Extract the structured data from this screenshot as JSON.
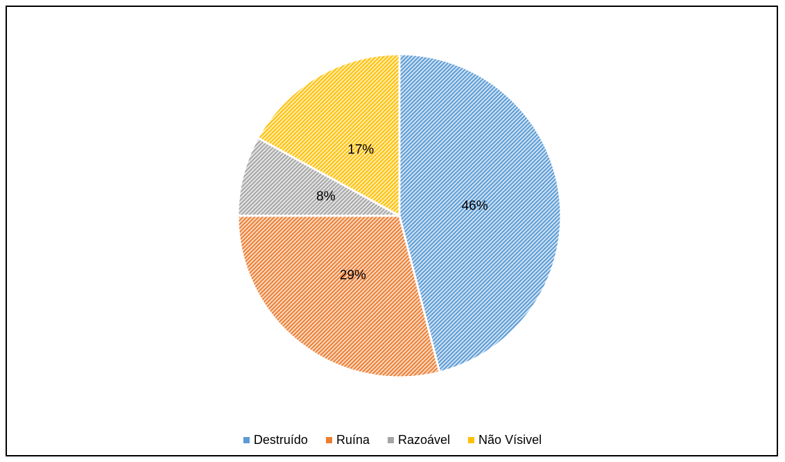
{
  "chart_data": {
    "type": "pie",
    "title": "",
    "slices": [
      {
        "label": "Destruído",
        "value": 46,
        "value_label": "46%",
        "color": "#5B9BD5"
      },
      {
        "label": "Ruína",
        "value": 29,
        "value_label": "29%",
        "color": "#ED7D31"
      },
      {
        "label": "Razoável",
        "value": 8,
        "value_label": "8%",
        "color": "#A5A5A5"
      },
      {
        "label": "Não Vísivel",
        "value": 17,
        "value_label": "17%",
        "color": "#FFC000"
      }
    ],
    "start_angle_deg": 0,
    "direction": "clockwise",
    "fill_pattern": "diagonal-hatch",
    "legend_position": "bottom"
  }
}
